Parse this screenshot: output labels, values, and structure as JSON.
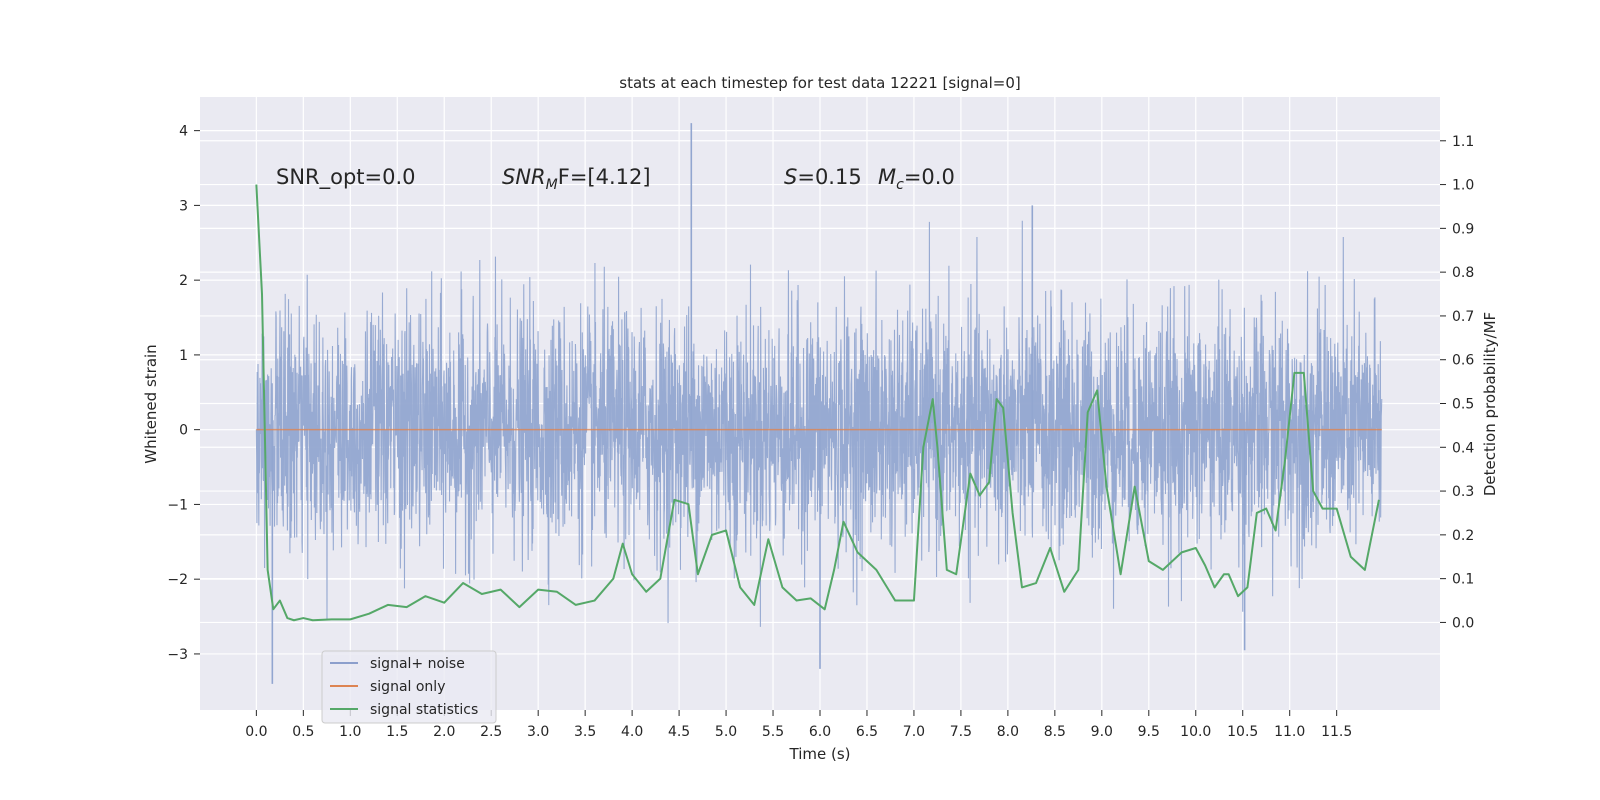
{
  "chart_data": {
    "type": "line",
    "title": "stats at each timestep for test data 12221 [signal=0]",
    "xlabel": "Time (s)",
    "ylabel": "Whitened strain",
    "y2label": "Detection probability/MF",
    "xlim": [
      -0.6,
      12.6
    ],
    "ylim": [
      -3.75,
      4.45
    ],
    "y2lim": [
      -0.2,
      1.2
    ],
    "x_ticks": [
      0.0,
      0.5,
      1.0,
      1.5,
      2.0,
      2.5,
      3.0,
      3.5,
      4.0,
      4.5,
      5.0,
      5.5,
      6.0,
      6.5,
      7.0,
      7.5,
      8.0,
      8.5,
      9.0,
      9.5,
      10.0,
      10.5,
      11.0,
      11.5
    ],
    "x_tick_labels": [
      "0.0",
      "0.5",
      "1.0",
      "1.5",
      "2.0",
      "2.5",
      "3.0",
      "3.5",
      "4.0",
      "4.5",
      "5.0",
      "5.5",
      "6.0",
      "6.5",
      "7.0",
      "7.5",
      "8.0",
      "8.5",
      "9.0",
      "9.5",
      "10.0",
      "10.5",
      "11.0",
      "11.5"
    ],
    "y_ticks": [
      -3,
      -2,
      -1,
      0,
      1,
      2,
      3,
      4
    ],
    "y_tick_labels": [
      "−3",
      "−2",
      "−1",
      "0",
      "1",
      "2",
      "3",
      "4"
    ],
    "y2_ticks": [
      0.0,
      0.1,
      0.2,
      0.3,
      0.4,
      0.5,
      0.6,
      0.7,
      0.8,
      0.9,
      1.0,
      1.1
    ],
    "y2_tick_labels": [
      "0.0",
      "0.1",
      "0.2",
      "0.3",
      "0.4",
      "0.5",
      "0.6",
      "0.7",
      "0.8",
      "0.9",
      "1.0",
      "1.1"
    ],
    "annotations": {
      "snr_opt": "SNR_opt=0.0",
      "snr_mf_prefix": "SNR",
      "snr_mf_sub": "M",
      "snr_mf_rest": "F=[4.12]",
      "s_prefix": "S",
      "s_rest": "=0.15",
      "mc_prefix": "M",
      "mc_sub": "c",
      "mc_rest": "=0.0"
    },
    "legend": {
      "position": "lower-left",
      "entries": [
        {
          "label": "signal+ noise",
          "color": "#8c9fcc"
        },
        {
          "label": "signal only",
          "color": "#dd8452"
        },
        {
          "label": "signal statistics",
          "color": "#55a868"
        }
      ]
    },
    "series": [
      {
        "name": "signal+ noise",
        "axis": "left",
        "color": "#92a6d0",
        "description": "dense whitened strain noise, approx Gaussian sigma 0.75 between -3.4 and 4.1",
        "x_range": [
          0.0,
          11.98
        ],
        "points": 4096,
        "envelope": {
          "typical_max": 2.5,
          "typical_min": -2.3
        },
        "notable_peaks": [
          {
            "x": 4.63,
            "y": 4.1
          },
          {
            "x": 0.17,
            "y": -3.4
          },
          {
            "x": 6.0,
            "y": -3.2
          },
          {
            "x": 8.26,
            "y": 3.0
          },
          {
            "x": 10.52,
            "y": -2.95
          }
        ]
      },
      {
        "name": "signal only",
        "axis": "left",
        "color": "#dd8452",
        "x": [
          0.0,
          11.98
        ],
        "values": [
          0.0,
          0.0
        ]
      },
      {
        "name": "signal statistics",
        "axis": "right",
        "color": "#55a868",
        "x": [
          0.0,
          0.06,
          0.12,
          0.18,
          0.25,
          0.33,
          0.4,
          0.5,
          0.6,
          0.8,
          1.0,
          1.2,
          1.4,
          1.6,
          1.8,
          2.0,
          2.2,
          2.4,
          2.6,
          2.8,
          3.0,
          3.2,
          3.4,
          3.6,
          3.8,
          3.9,
          4.0,
          4.15,
          4.3,
          4.45,
          4.6,
          4.7,
          4.85,
          5.0,
          5.15,
          5.3,
          5.45,
          5.6,
          5.75,
          5.9,
          6.05,
          6.15,
          6.25,
          6.4,
          6.6,
          6.8,
          7.0,
          7.1,
          7.2,
          7.25,
          7.35,
          7.45,
          7.6,
          7.7,
          7.8,
          7.88,
          7.95,
          8.05,
          8.15,
          8.3,
          8.45,
          8.6,
          8.75,
          8.85,
          8.95,
          9.05,
          9.2,
          9.35,
          9.5,
          9.65,
          9.85,
          10.0,
          10.1,
          10.2,
          10.3,
          10.35,
          10.45,
          10.55,
          10.65,
          10.75,
          10.85,
          10.95,
          11.05,
          11.15,
          11.25,
          11.35,
          11.5,
          11.65,
          11.8,
          11.95
        ],
        "values": [
          1.0,
          0.75,
          0.12,
          0.03,
          0.05,
          0.01,
          0.005,
          0.01,
          0.005,
          0.007,
          0.007,
          0.02,
          0.04,
          0.035,
          0.06,
          0.045,
          0.09,
          0.065,
          0.075,
          0.035,
          0.075,
          0.07,
          0.04,
          0.05,
          0.1,
          0.18,
          0.11,
          0.07,
          0.1,
          0.28,
          0.27,
          0.11,
          0.2,
          0.21,
          0.08,
          0.04,
          0.19,
          0.08,
          0.05,
          0.055,
          0.03,
          0.12,
          0.23,
          0.16,
          0.12,
          0.05,
          0.05,
          0.4,
          0.51,
          0.4,
          0.12,
          0.11,
          0.34,
          0.29,
          0.32,
          0.51,
          0.49,
          0.25,
          0.08,
          0.09,
          0.17,
          0.07,
          0.12,
          0.48,
          0.53,
          0.31,
          0.11,
          0.31,
          0.14,
          0.12,
          0.16,
          0.17,
          0.13,
          0.08,
          0.11,
          0.11,
          0.06,
          0.08,
          0.25,
          0.26,
          0.21,
          0.37,
          0.57,
          0.57,
          0.3,
          0.26,
          0.26,
          0.15,
          0.12,
          0.28
        ]
      }
    ]
  }
}
